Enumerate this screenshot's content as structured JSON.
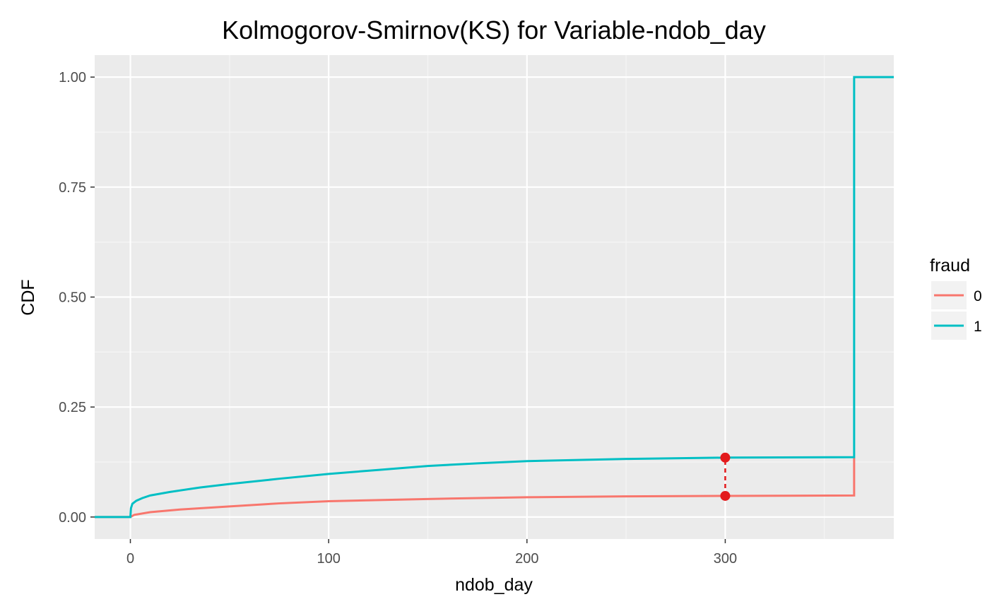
{
  "chart_data": {
    "type": "line",
    "title": "Kolmogorov-Smirnov(KS) for Variable-ndob_day",
    "xlabel": "ndob_day",
    "ylabel": "CDF",
    "xlim": [
      -18,
      385
    ],
    "ylim": [
      -0.05,
      1.05
    ],
    "x_ticks": [
      0,
      100,
      200,
      300
    ],
    "x_tick_labels": [
      "0",
      "100",
      "200",
      "300"
    ],
    "y_ticks": [
      0,
      0.25,
      0.5,
      0.75,
      1
    ],
    "y_tick_labels": [
      "0.00",
      "0.25",
      "0.50",
      "0.75",
      "1.00"
    ],
    "grid": true,
    "legend": {
      "title": "fraud",
      "placement": "right"
    },
    "series": [
      {
        "name": "0",
        "color": "#F8766D",
        "step": true,
        "points": [
          [
            -18,
            0.0
          ],
          [
            0,
            0.0
          ],
          [
            2,
            0.005
          ],
          [
            10,
            0.011
          ],
          [
            25,
            0.017
          ],
          [
            50,
            0.024
          ],
          [
            75,
            0.031
          ],
          [
            100,
            0.036
          ],
          [
            150,
            0.041
          ],
          [
            200,
            0.045
          ],
          [
            250,
            0.047
          ],
          [
            300,
            0.048
          ],
          [
            365,
            0.049
          ],
          [
            365,
            0.135
          ]
        ]
      },
      {
        "name": "1",
        "color": "#00BFC4",
        "step": true,
        "points": [
          [
            -18,
            0.0
          ],
          [
            0,
            0.0
          ],
          [
            0.3,
            0.02
          ],
          [
            1,
            0.03
          ],
          [
            3,
            0.037
          ],
          [
            6,
            0.043
          ],
          [
            10,
            0.049
          ],
          [
            20,
            0.057
          ],
          [
            35,
            0.067
          ],
          [
            50,
            0.075
          ],
          [
            75,
            0.087
          ],
          [
            100,
            0.098
          ],
          [
            125,
            0.107
          ],
          [
            150,
            0.116
          ],
          [
            175,
            0.122
          ],
          [
            200,
            0.127
          ],
          [
            250,
            0.132
          ],
          [
            300,
            0.135
          ],
          [
            365,
            0.136
          ],
          [
            365,
            1.0
          ],
          [
            385,
            1.0
          ]
        ]
      }
    ],
    "ks_segment": {
      "x": 300,
      "y0": 0.048,
      "y1": 0.135,
      "color": "#E31A1C"
    }
  }
}
